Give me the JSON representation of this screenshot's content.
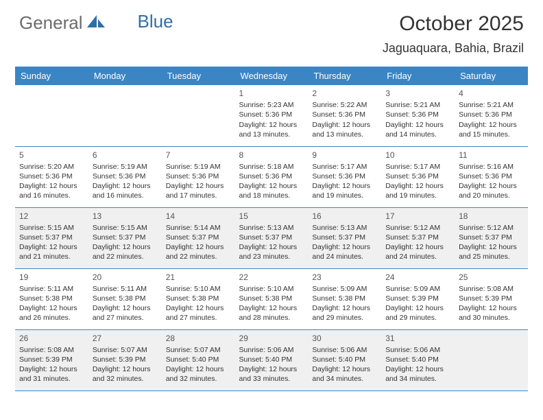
{
  "logo": {
    "text_gray": "General",
    "text_blue": "Blue"
  },
  "title": "October 2025",
  "location": "Jaguaquara, Bahia, Brazil",
  "colors": {
    "header_bg": "#3b85c5",
    "header_text": "#ffffff",
    "shaded_bg": "#f0f0f0",
    "border": "#3b85c5",
    "logo_gray": "#6b6b6b",
    "logo_blue": "#2f6fa8"
  },
  "day_headers": [
    "Sunday",
    "Monday",
    "Tuesday",
    "Wednesday",
    "Thursday",
    "Friday",
    "Saturday"
  ],
  "weeks": [
    {
      "shaded": false,
      "cells": [
        {
          "empty": true
        },
        {
          "empty": true
        },
        {
          "empty": true
        },
        {
          "num": "1",
          "sunrise": "5:23 AM",
          "sunset": "5:36 PM",
          "daylight": "12 hours and 13 minutes."
        },
        {
          "num": "2",
          "sunrise": "5:22 AM",
          "sunset": "5:36 PM",
          "daylight": "12 hours and 13 minutes."
        },
        {
          "num": "3",
          "sunrise": "5:21 AM",
          "sunset": "5:36 PM",
          "daylight": "12 hours and 14 minutes."
        },
        {
          "num": "4",
          "sunrise": "5:21 AM",
          "sunset": "5:36 PM",
          "daylight": "12 hours and 15 minutes."
        }
      ]
    },
    {
      "shaded": false,
      "cells": [
        {
          "num": "5",
          "sunrise": "5:20 AM",
          "sunset": "5:36 PM",
          "daylight": "12 hours and 16 minutes."
        },
        {
          "num": "6",
          "sunrise": "5:19 AM",
          "sunset": "5:36 PM",
          "daylight": "12 hours and 16 minutes."
        },
        {
          "num": "7",
          "sunrise": "5:19 AM",
          "sunset": "5:36 PM",
          "daylight": "12 hours and 17 minutes."
        },
        {
          "num": "8",
          "sunrise": "5:18 AM",
          "sunset": "5:36 PM",
          "daylight": "12 hours and 18 minutes."
        },
        {
          "num": "9",
          "sunrise": "5:17 AM",
          "sunset": "5:36 PM",
          "daylight": "12 hours and 19 minutes."
        },
        {
          "num": "10",
          "sunrise": "5:17 AM",
          "sunset": "5:36 PM",
          "daylight": "12 hours and 19 minutes."
        },
        {
          "num": "11",
          "sunrise": "5:16 AM",
          "sunset": "5:36 PM",
          "daylight": "12 hours and 20 minutes."
        }
      ]
    },
    {
      "shaded": true,
      "cells": [
        {
          "num": "12",
          "sunrise": "5:15 AM",
          "sunset": "5:37 PM",
          "daylight": "12 hours and 21 minutes."
        },
        {
          "num": "13",
          "sunrise": "5:15 AM",
          "sunset": "5:37 PM",
          "daylight": "12 hours and 22 minutes."
        },
        {
          "num": "14",
          "sunrise": "5:14 AM",
          "sunset": "5:37 PM",
          "daylight": "12 hours and 22 minutes."
        },
        {
          "num": "15",
          "sunrise": "5:13 AM",
          "sunset": "5:37 PM",
          "daylight": "12 hours and 23 minutes."
        },
        {
          "num": "16",
          "sunrise": "5:13 AM",
          "sunset": "5:37 PM",
          "daylight": "12 hours and 24 minutes."
        },
        {
          "num": "17",
          "sunrise": "5:12 AM",
          "sunset": "5:37 PM",
          "daylight": "12 hours and 24 minutes."
        },
        {
          "num": "18",
          "sunrise": "5:12 AM",
          "sunset": "5:37 PM",
          "daylight": "12 hours and 25 minutes."
        }
      ]
    },
    {
      "shaded": false,
      "cells": [
        {
          "num": "19",
          "sunrise": "5:11 AM",
          "sunset": "5:38 PM",
          "daylight": "12 hours and 26 minutes."
        },
        {
          "num": "20",
          "sunrise": "5:11 AM",
          "sunset": "5:38 PM",
          "daylight": "12 hours and 27 minutes."
        },
        {
          "num": "21",
          "sunrise": "5:10 AM",
          "sunset": "5:38 PM",
          "daylight": "12 hours and 27 minutes."
        },
        {
          "num": "22",
          "sunrise": "5:10 AM",
          "sunset": "5:38 PM",
          "daylight": "12 hours and 28 minutes."
        },
        {
          "num": "23",
          "sunrise": "5:09 AM",
          "sunset": "5:38 PM",
          "daylight": "12 hours and 29 minutes."
        },
        {
          "num": "24",
          "sunrise": "5:09 AM",
          "sunset": "5:39 PM",
          "daylight": "12 hours and 29 minutes."
        },
        {
          "num": "25",
          "sunrise": "5:08 AM",
          "sunset": "5:39 PM",
          "daylight": "12 hours and 30 minutes."
        }
      ]
    },
    {
      "shaded": true,
      "cells": [
        {
          "num": "26",
          "sunrise": "5:08 AM",
          "sunset": "5:39 PM",
          "daylight": "12 hours and 31 minutes."
        },
        {
          "num": "27",
          "sunrise": "5:07 AM",
          "sunset": "5:39 PM",
          "daylight": "12 hours and 32 minutes."
        },
        {
          "num": "28",
          "sunrise": "5:07 AM",
          "sunset": "5:40 PM",
          "daylight": "12 hours and 32 minutes."
        },
        {
          "num": "29",
          "sunrise": "5:06 AM",
          "sunset": "5:40 PM",
          "daylight": "12 hours and 33 minutes."
        },
        {
          "num": "30",
          "sunrise": "5:06 AM",
          "sunset": "5:40 PM",
          "daylight": "12 hours and 34 minutes."
        },
        {
          "num": "31",
          "sunrise": "5:06 AM",
          "sunset": "5:40 PM",
          "daylight": "12 hours and 34 minutes."
        },
        {
          "empty": true
        }
      ]
    }
  ]
}
